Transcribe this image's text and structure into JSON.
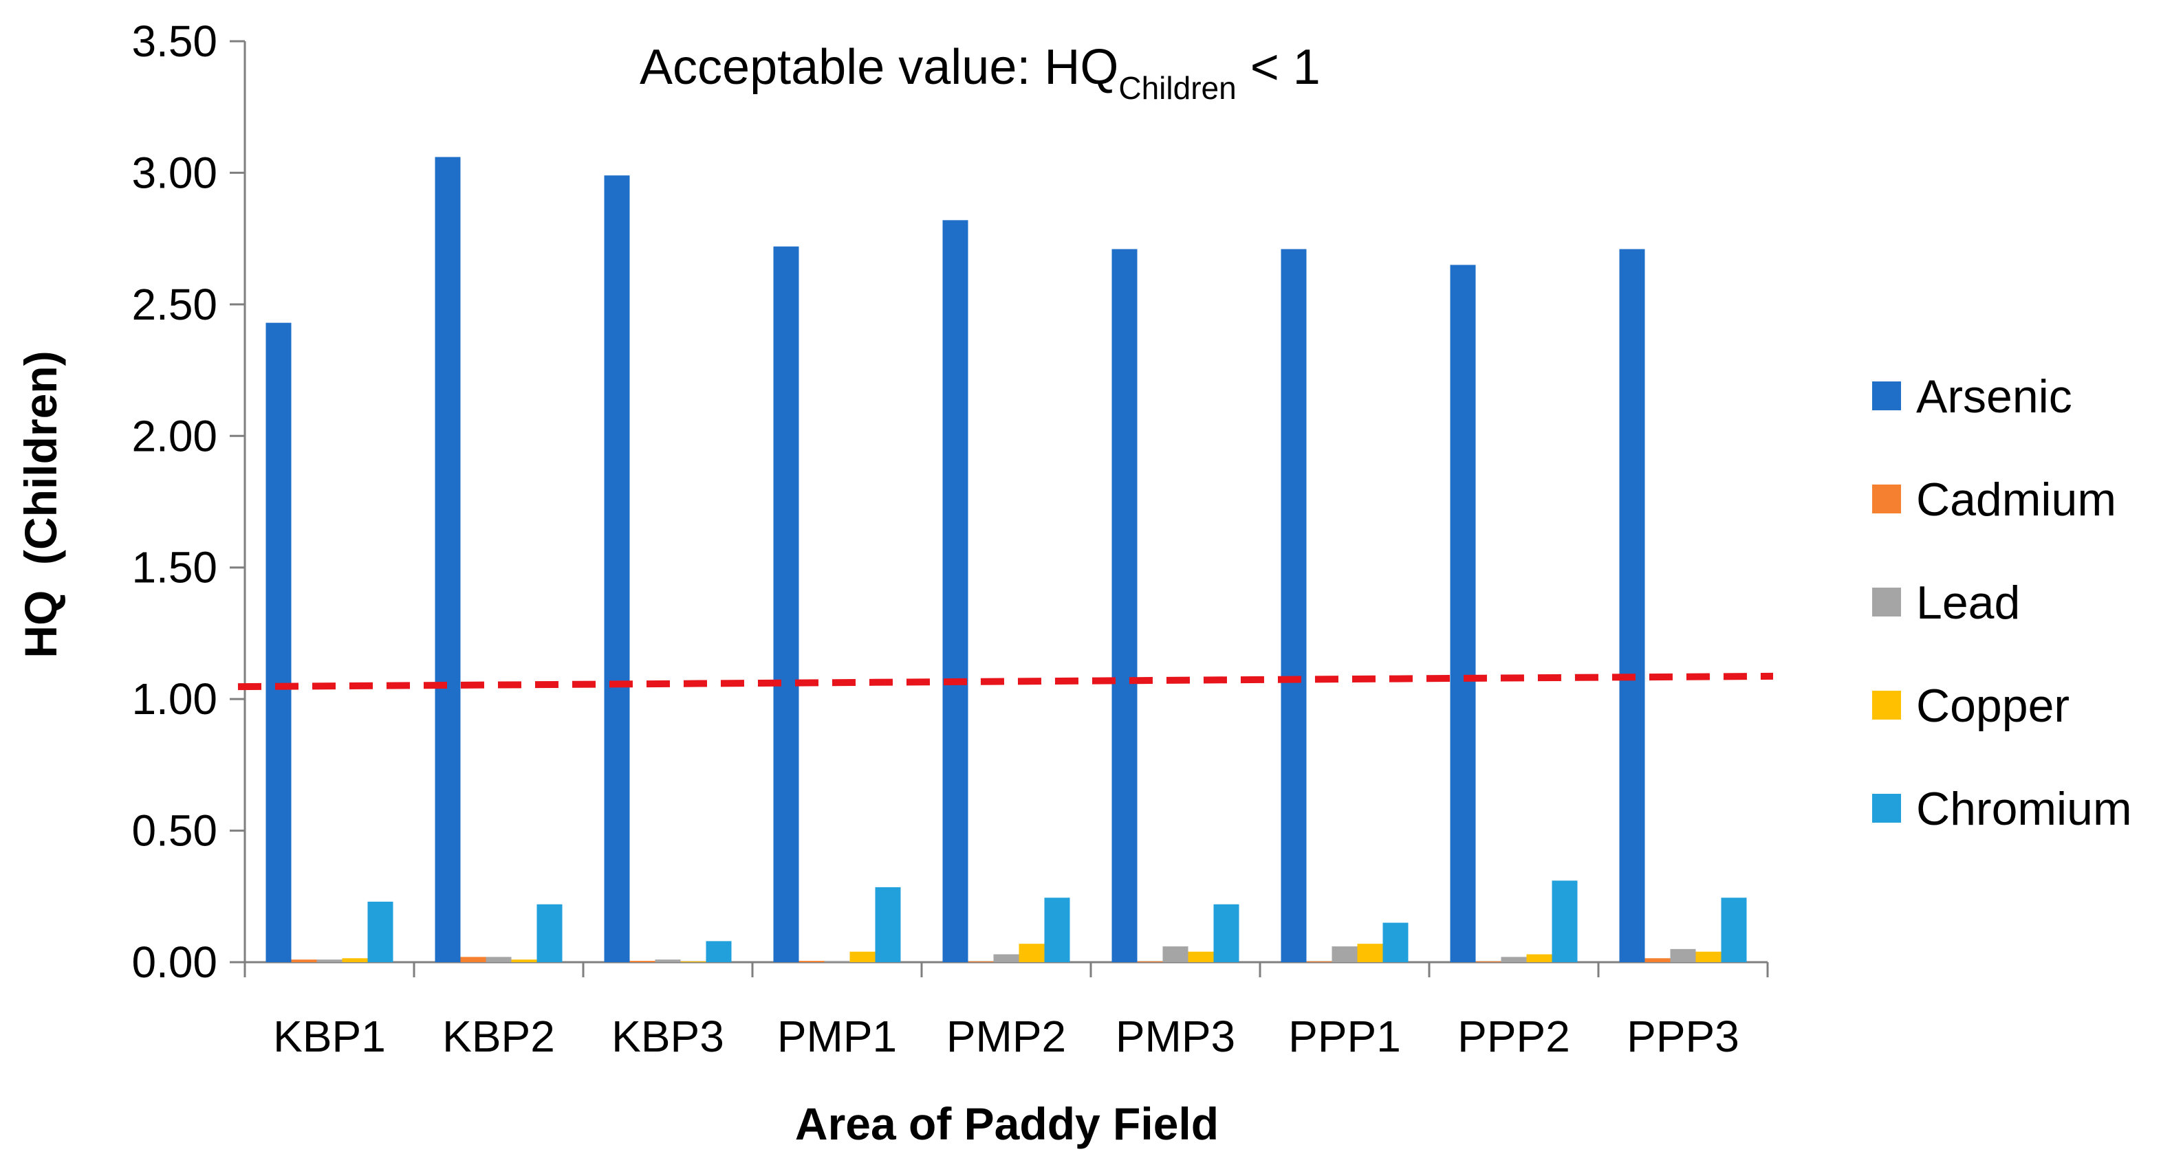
{
  "chart_data": {
    "type": "bar",
    "title": "",
    "annotation": {
      "prefix": "Acceptable value: HQ",
      "subscript": "Children",
      "suffix": " < 1"
    },
    "xlabel": "Area of Paddy Field",
    "ylabel": "HQ  (Children)",
    "ylim": [
      0,
      3.5
    ],
    "yticks": [
      "0.00",
      "0.50",
      "1.00",
      "1.50",
      "2.00",
      "2.50",
      "3.00",
      "3.50"
    ],
    "categories": [
      "KBP1",
      "KBP2",
      "KBP3",
      "PMP1",
      "PMP2",
      "PMP3",
      "PPP1",
      "PPP2",
      "PPP3"
    ],
    "series": [
      {
        "name": "Arsenic",
        "color": "#1F6FC8",
        "values": [
          2.43,
          3.06,
          2.99,
          2.72,
          2.82,
          2.71,
          2.71,
          2.65,
          2.71
        ]
      },
      {
        "name": "Cadmium",
        "color": "#F5802F",
        "values": [
          0.01,
          0.02,
          0.005,
          0.005,
          0.003,
          0.003,
          0.003,
          0.003,
          0.015
        ]
      },
      {
        "name": "Lead",
        "color": "#A5A5A5",
        "values": [
          0.01,
          0.02,
          0.01,
          0.005,
          0.03,
          0.06,
          0.06,
          0.02,
          0.05
        ]
      },
      {
        "name": "Copper",
        "color": "#FFC000",
        "values": [
          0.015,
          0.01,
          0.003,
          0.04,
          0.07,
          0.04,
          0.07,
          0.03,
          0.04
        ]
      },
      {
        "name": "Chromium",
        "color": "#21A0DB",
        "values": [
          0.23,
          0.22,
          0.08,
          0.285,
          0.245,
          0.22,
          0.15,
          0.31,
          0.245
        ]
      }
    ],
    "reference_line": {
      "value": 1.0,
      "end_value": 1.04,
      "color": "#E8141B",
      "style": "dashed"
    },
    "legend_position": "right"
  }
}
